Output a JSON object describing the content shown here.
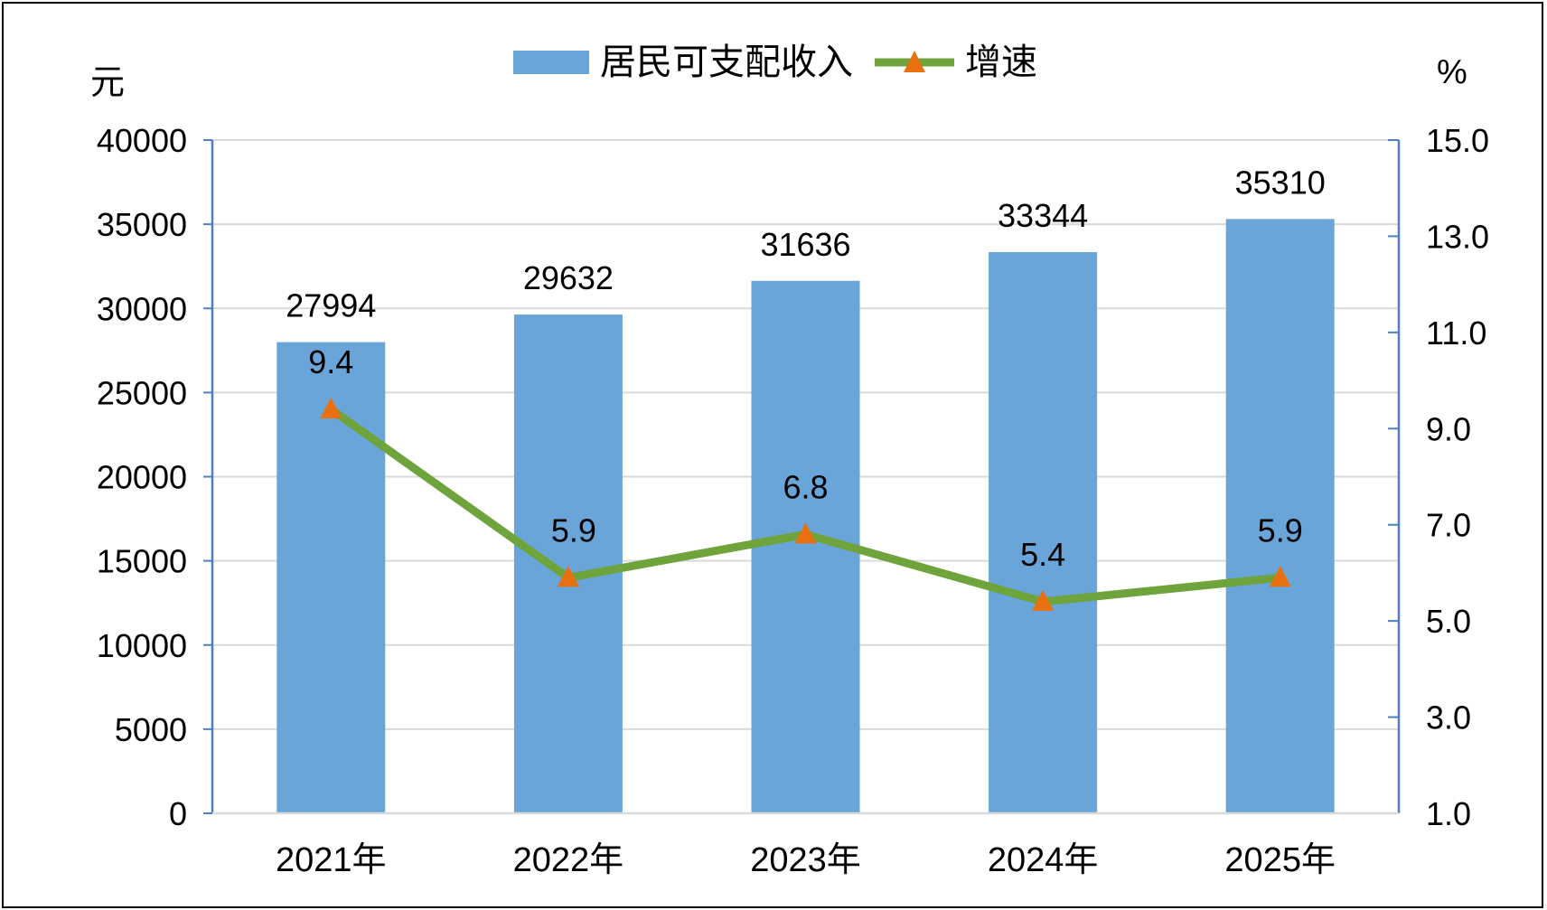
{
  "chart_data": {
    "type": "bar",
    "categories": [
      "2021年",
      "2022年",
      "2023年",
      "2024年",
      "2025年"
    ],
    "series": [
      {
        "name": "居民可支配收入",
        "type": "bar",
        "axis": "left",
        "values": [
          27994,
          29632,
          31636,
          33344,
          35310
        ],
        "labels": [
          "27994",
          "29632",
          "31636",
          "33344",
          "35310"
        ],
        "color": "#69A5D9"
      },
      {
        "name": "增速",
        "type": "line",
        "axis": "right",
        "values": [
          9.4,
          5.9,
          6.8,
          5.4,
          5.9
        ],
        "labels": [
          "9.4",
          "5.9",
          "6.8",
          "5.4",
          "5.9"
        ],
        "color": "#6FA33B",
        "marker": "triangle",
        "marker_color": "#E8700F"
      }
    ],
    "y_left": {
      "unit": "元",
      "ylim": [
        0,
        40000
      ],
      "ticks": [
        "0",
        "5000",
        "10000",
        "15000",
        "20000",
        "25000",
        "30000",
        "35000",
        "40000"
      ]
    },
    "y_right": {
      "unit": "%",
      "ylim": [
        1.0,
        15.0
      ],
      "ticks": [
        "1.0",
        "3.0",
        "5.0",
        "7.0",
        "9.0",
        "11.0",
        "13.0",
        "15.0"
      ]
    },
    "grid": true,
    "legend_position": "top-center",
    "axis_color": "#4F7FBF",
    "grid_color": "#D9D9D9"
  }
}
